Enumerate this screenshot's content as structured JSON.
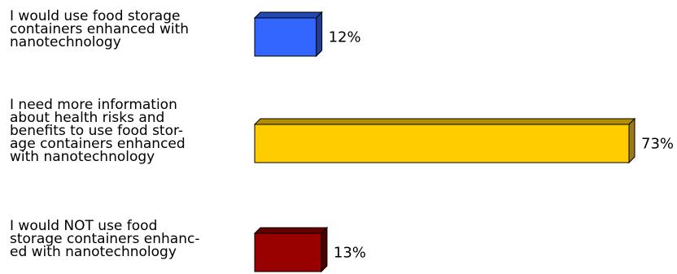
{
  "chart_data": {
    "type": "bar",
    "orientation": "horizontal",
    "style": "3d",
    "categories": [
      [
        "I would use food storage",
        "containers enhanced with",
        "nanotechnology"
      ],
      [
        "I need more information",
        "about health risks and",
        "benefits to use food stor-",
        "age containers enhanced",
        "with nanotechnology"
      ],
      [
        "I would NOT use food",
        "storage containers enhanc-",
        "ed with nanotechnology"
      ]
    ],
    "values": [
      12,
      73,
      13
    ],
    "value_labels": [
      "12%",
      "73%",
      "13%"
    ],
    "colors": [
      "#3366FF",
      "#FFCC00",
      "#990000"
    ],
    "side_colors": [
      "#1F3D99",
      "#99791A",
      "#4D0000"
    ],
    "top_colors": [
      "#2447B3",
      "#B38F00",
      "#660000"
    ],
    "xlim": [
      0,
      73
    ],
    "legend": "none",
    "grid": false
  }
}
